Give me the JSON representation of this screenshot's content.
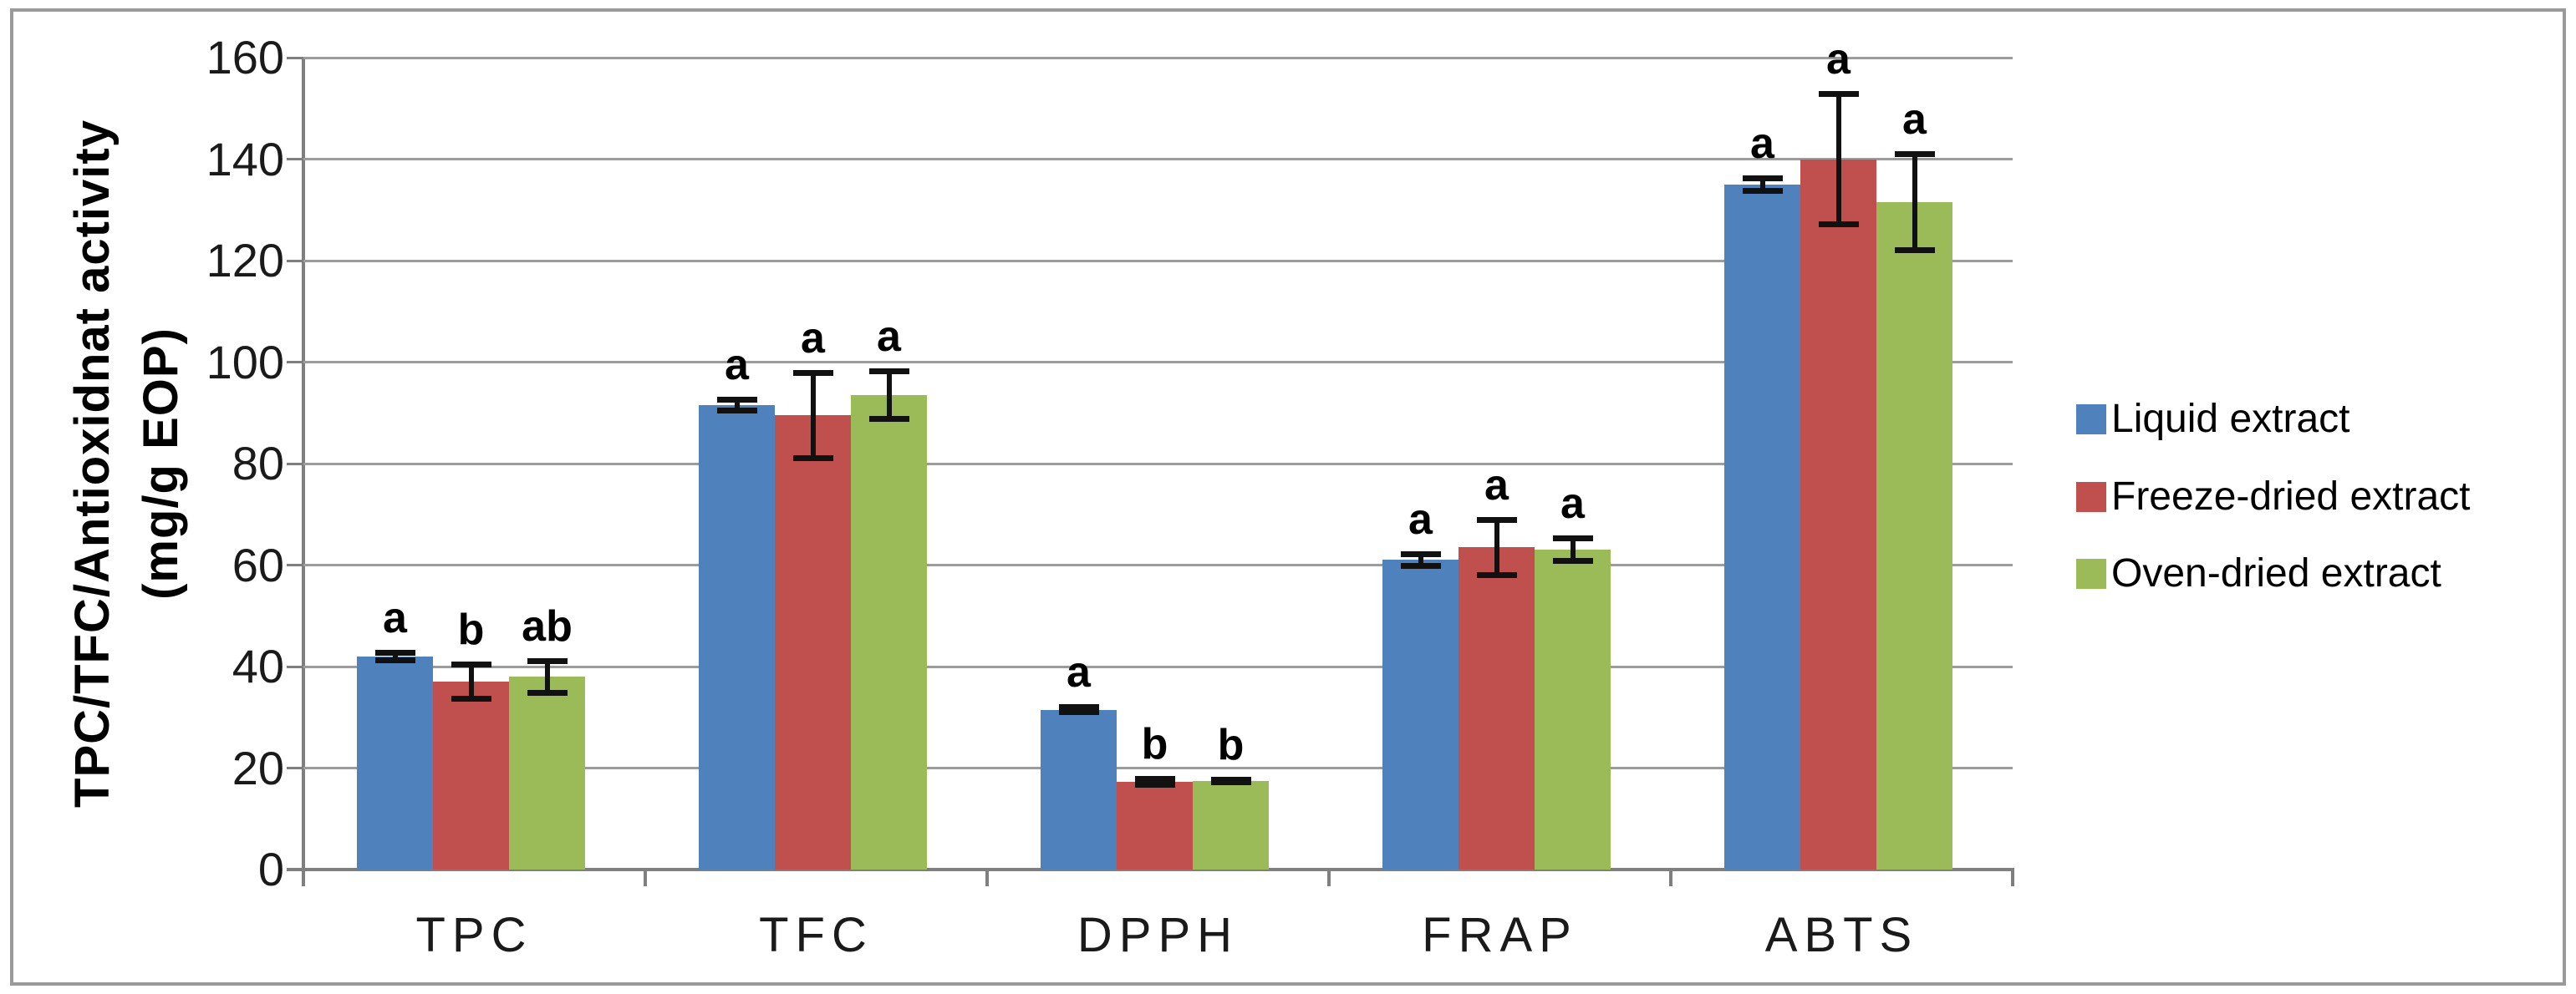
{
  "figure": {
    "y_axis_title_line1": "TPC/TFC/Antioxidnat activity",
    "y_axis_title_line2": "(mg/g EOP)"
  },
  "chart_data": {
    "type": "bar",
    "title": "",
    "xlabel": "",
    "ylabel": "TPC/TFC/Antioxidnat activity (mg/g EOP)",
    "categories": [
      "TPC",
      "TFC",
      "DPPH",
      "FRAP",
      "ABTS"
    ],
    "series": [
      {
        "name": "Liquid extract",
        "color": "#4F81BD",
        "values": [
          42,
          91.5,
          31.5,
          61,
          135
        ],
        "errors": [
          0.8,
          1.2,
          0.6,
          1.2,
          1.3
        ],
        "sig_letters": [
          "a",
          "a",
          "a",
          "a",
          "a"
        ]
      },
      {
        "name": "Freeze-dried extract",
        "color": "#C0504D",
        "values": [
          37,
          89.5,
          17.3,
          63.5,
          140
        ],
        "errors": [
          3.5,
          8.5,
          0.6,
          5.5,
          13
        ],
        "sig_letters": [
          "b",
          "a",
          "b",
          "a",
          "a"
        ]
      },
      {
        "name": "Oven-dried extract",
        "color": "#9BBB59",
        "values": [
          38,
          93.5,
          17.4,
          63,
          131.5
        ],
        "errors": [
          3.2,
          4.8,
          0.3,
          2.3,
          9.5
        ],
        "sig_letters": [
          "ab",
          "a",
          "b",
          "a",
          "a"
        ]
      }
    ],
    "ylim": [
      0,
      160
    ],
    "ytick_step": 20,
    "yticks": [
      0,
      20,
      40,
      60,
      80,
      100,
      120,
      140,
      160
    ],
    "grid": "horizontal",
    "legend_position": "right",
    "error_bars": true
  },
  "colors": {
    "gridline": "#9c9c9c",
    "axis": "#7f7f7f",
    "figure_border": "#9a9a9a",
    "error_bar": "#111111",
    "text": "#000000"
  }
}
